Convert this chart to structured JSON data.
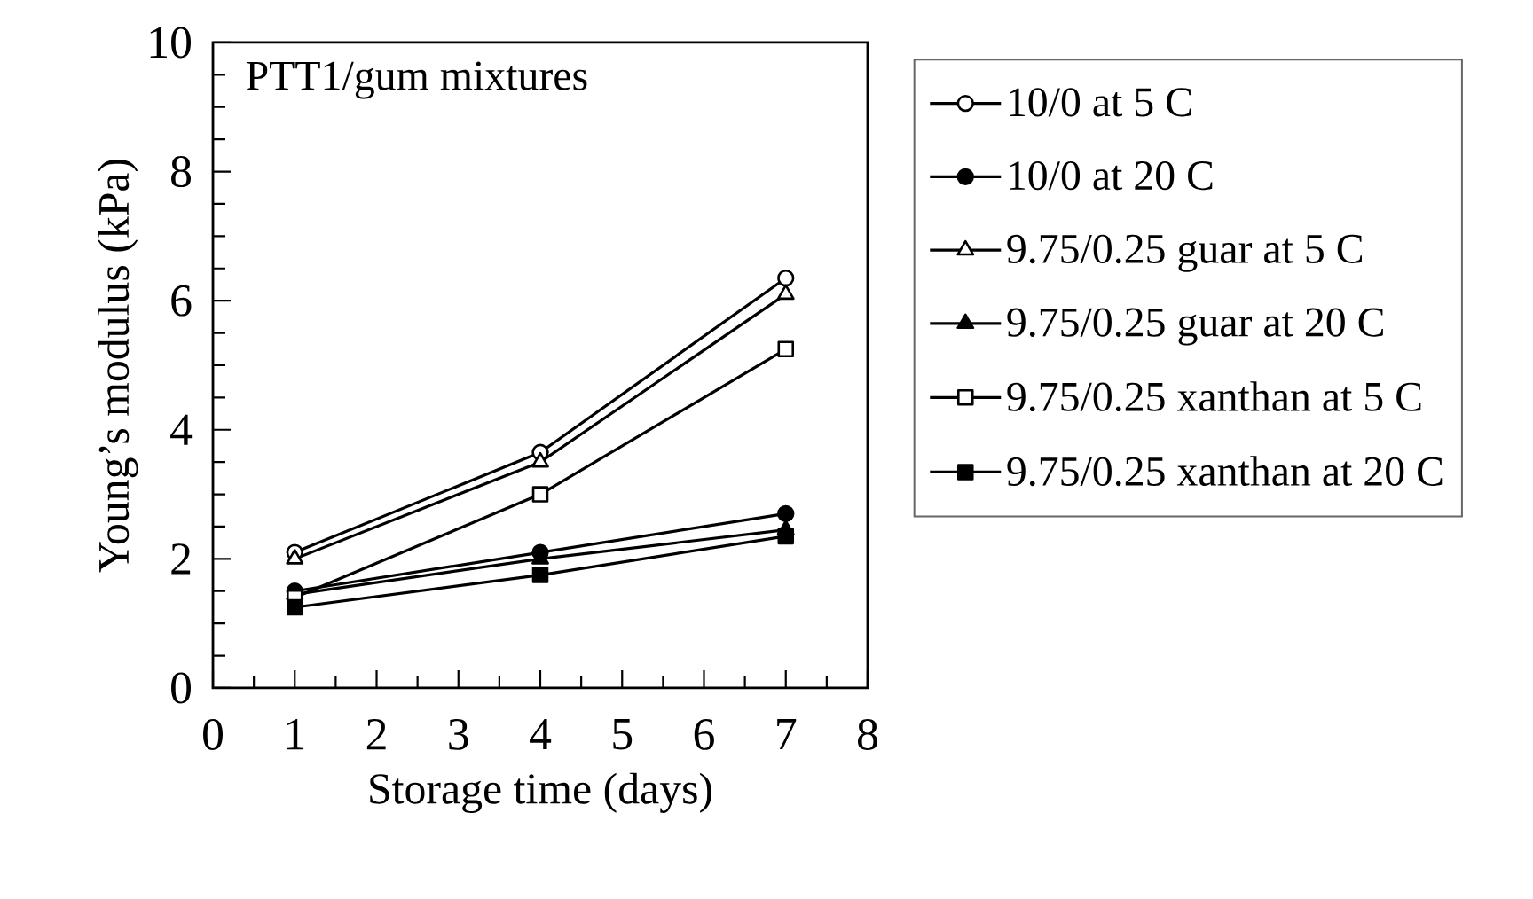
{
  "chart_data": {
    "type": "line",
    "xlabel": "Storage time (days)",
    "ylabel": "Young’s modulus (kPa)",
    "annotations": [
      "PTT1/gum mixtures"
    ],
    "x": [
      1,
      4,
      7
    ],
    "xlim": [
      0,
      8
    ],
    "xticks": [
      0,
      1,
      2,
      3,
      4,
      5,
      6,
      7,
      8
    ],
    "ylim": [
      0,
      10
    ],
    "yticks": [
      0,
      2,
      4,
      6,
      8,
      10
    ],
    "grid": false,
    "legend": "right",
    "line_style": "solid",
    "series": [
      {
        "name": "10/0 at 5 C",
        "color": "#000000",
        "marker": "circle-open",
        "values": [
          2.1,
          3.65,
          6.35
        ]
      },
      {
        "name": "10/0 at 20 C",
        "color": "#000000",
        "marker": "circle",
        "values": [
          1.5,
          2.1,
          2.7
        ]
      },
      {
        "name": "9.75/0.25 guar at 5 C",
        "color": "#000000",
        "marker": "triangle-open",
        "values": [
          2.0,
          3.5,
          6.1
        ]
      },
      {
        "name": "9.75/0.25 guar at 20 C",
        "color": "#000000",
        "marker": "triangle",
        "values": [
          1.45,
          2.0,
          2.45
        ]
      },
      {
        "name": "9.75/0.25 xanthan at 5 C",
        "color": "#000000",
        "marker": "square-open",
        "values": [
          1.4,
          3.0,
          5.25
        ]
      },
      {
        "name": "9.75/0.25 xanthan at 20 C",
        "color": "#000000",
        "marker": "square",
        "values": [
          1.25,
          1.75,
          2.35
        ]
      }
    ]
  }
}
